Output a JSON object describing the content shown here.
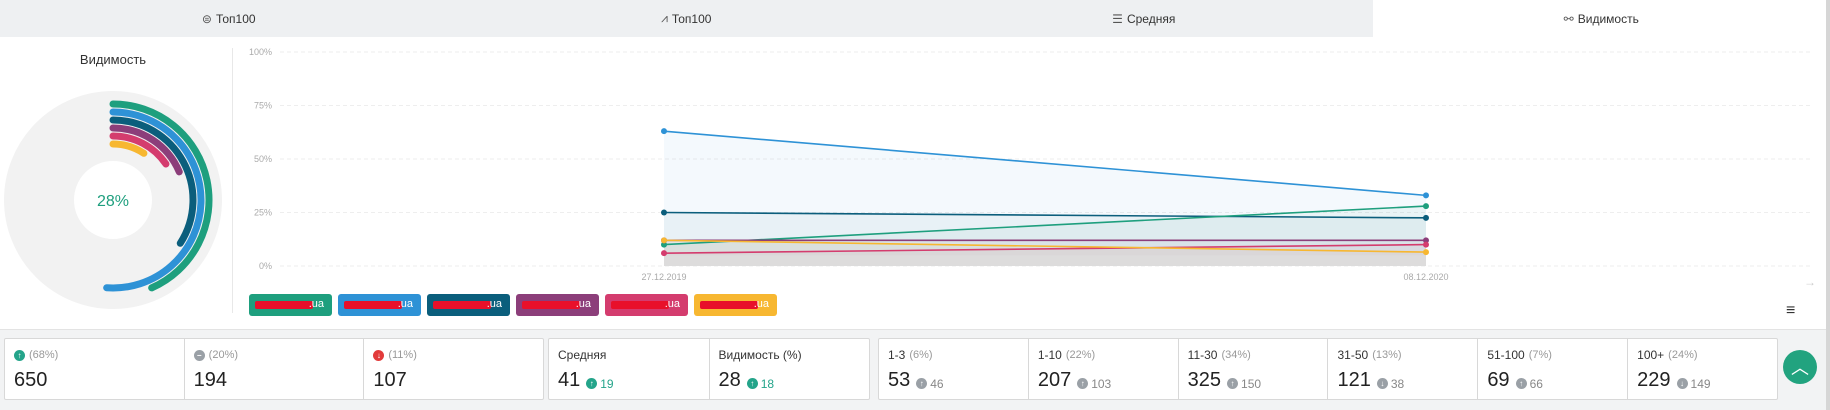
{
  "tabs": [
    {
      "label": "Топ100",
      "icon": "layers-icon",
      "glyph": "⊜",
      "active": false
    },
    {
      "label": "Топ100",
      "icon": "trend-icon",
      "glyph": "⩘",
      "active": false
    },
    {
      "label": "Средняя",
      "icon": "lines-icon",
      "glyph": "☰",
      "active": false
    },
    {
      "label": "Видимость",
      "icon": "glasses-icon",
      "glyph": "⚯",
      "active": true
    }
  ],
  "donut": {
    "title": "Видимость",
    "center_text": "28%",
    "ring_values": [
      28,
      33,
      22,
      12,
      10,
      6
    ],
    "colors": [
      "#1e9f7e",
      "#2e92d6",
      "#0b5e7c",
      "#8c3e7a",
      "#d43c6e",
      "#f7b731"
    ]
  },
  "chart_data": {
    "type": "line",
    "x": [
      "27.12.2019",
      "08.12.2020"
    ],
    "yticks": [
      "100%",
      "75%",
      "50%",
      "25%",
      "0%"
    ],
    "ylim": [
      0,
      100
    ],
    "series": [
      {
        "color": "#2e92d6",
        "values": [
          63,
          33
        ]
      },
      {
        "color": "#0b5e7c",
        "values": [
          25,
          22.5
        ]
      },
      {
        "color": "#1e9f7e",
        "values": [
          10,
          28
        ]
      },
      {
        "color": "#8c3e7a",
        "values": [
          12,
          12
        ]
      },
      {
        "color": "#d43c6e",
        "values": [
          6,
          10
        ]
      },
      {
        "color": "#f7b731",
        "values": [
          12,
          6.5
        ]
      }
    ],
    "grid": true
  },
  "legend": [
    {
      "text": ".ua",
      "color": "#1e9f7e"
    },
    {
      "text": ".ua",
      "color": "#2e92d6"
    },
    {
      "text": ".ua",
      "color": "#0b5e7c"
    },
    {
      "text": ".ua",
      "color": "#8c3e7a"
    },
    {
      "text": ".ua",
      "color": "#d43c6e"
    },
    {
      "text": ".ua",
      "color": "#f7b731"
    }
  ],
  "stats": {
    "movement": [
      {
        "icon": "arrow-up-circle-icon",
        "glyph": "↑",
        "pct": "(68%)",
        "value": "650",
        "cls": "green"
      },
      {
        "icon": "minus-circle-icon",
        "glyph": "−",
        "pct": "(20%)",
        "value": "194",
        "cls": "grey"
      },
      {
        "icon": "arrow-down-circle-icon",
        "glyph": "↓",
        "pct": "(11%)",
        "value": "107",
        "cls": "redc"
      }
    ],
    "averages": [
      {
        "label": "Средняя",
        "value": "41",
        "delta": "19"
      },
      {
        "label": "Видимость (%)",
        "value": "28",
        "delta": "18"
      }
    ],
    "ranges": [
      {
        "label": "1-3",
        "pct": "(6%)",
        "value": "53",
        "delta": "46"
      },
      {
        "label": "1-10",
        "pct": "(22%)",
        "value": "207",
        "delta": "103"
      },
      {
        "label": "11-30",
        "pct": "(34%)",
        "value": "325",
        "delta": "150"
      },
      {
        "label": "31-50",
        "pct": "(13%)",
        "value": "121",
        "delta": "38"
      },
      {
        "label": "51-100",
        "pct": "(7%)",
        "value": "69",
        "delta": "66"
      },
      {
        "label": "100+",
        "pct": "(24%)",
        "value": "229",
        "delta": "149"
      }
    ]
  }
}
